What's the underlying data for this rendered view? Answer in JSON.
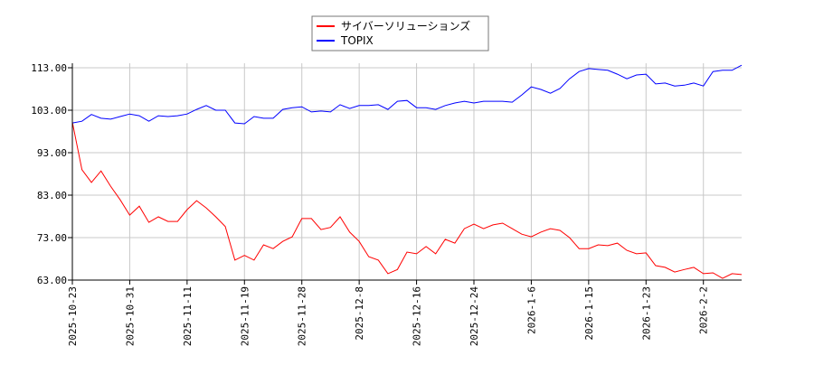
{
  "chart_data": {
    "type": "line",
    "title": "",
    "xlabel": "",
    "ylabel": "",
    "ylim": [
      63,
      113
    ],
    "xlim": [
      0,
      70
    ],
    "grid": true,
    "legend_position": "top-center",
    "y_ticks": [
      {
        "value": 63,
        "label": "63.00"
      },
      {
        "value": 73,
        "label": "73.00"
      },
      {
        "value": 83,
        "label": "83.00"
      },
      {
        "value": 93,
        "label": "93.00"
      },
      {
        "value": 103,
        "label": "103.00"
      },
      {
        "value": 113,
        "label": "113.00"
      }
    ],
    "x_ticks": [
      {
        "index": 0,
        "label": "2025-10-23"
      },
      {
        "index": 6,
        "label": "2025-10-31"
      },
      {
        "index": 12,
        "label": "2025-11-11"
      },
      {
        "index": 18,
        "label": "2025-11-19"
      },
      {
        "index": 24,
        "label": "2025-11-28"
      },
      {
        "index": 30,
        "label": "2025-12-8"
      },
      {
        "index": 36,
        "label": "2025-12-16"
      },
      {
        "index": 42,
        "label": "2025-12-24"
      },
      {
        "index": 48,
        "label": "2026-1-6"
      },
      {
        "index": 54,
        "label": "2026-1-15"
      },
      {
        "index": 60,
        "label": "2026-1-23"
      },
      {
        "index": 66,
        "label": "2026-2-2"
      }
    ],
    "series": [
      {
        "name": "サイバーソリューションズ",
        "color": "#ff0000",
        "values": [
          100.2,
          89,
          86,
          88.7,
          85.1,
          81.9,
          78.3,
          80.4,
          76.6,
          77.9,
          76.8,
          76.8,
          79.6,
          81.7,
          80,
          77.9,
          75.6,
          67.7,
          68.8,
          67.7,
          71.3,
          70.4,
          72.1,
          73.2,
          77.5,
          77.5,
          74.9,
          75.4,
          77.9,
          74.3,
          72.1,
          68.5,
          67.7,
          64.5,
          65.5,
          69.6,
          69.2,
          70.9,
          69.2,
          72.6,
          71.7,
          75.1,
          76.2,
          75.1,
          76,
          76.4,
          75.1,
          73.8,
          73.2,
          74.3,
          75.1,
          74.7,
          73,
          70.4,
          70.4,
          71.3,
          71.1,
          71.7,
          70,
          69.2,
          69.4,
          66.4,
          66,
          64.9,
          65.5,
          66,
          64.5,
          64.7,
          63.4,
          64.5,
          64.3
        ]
      },
      {
        "name": "TOPIX",
        "color": "#0000ff",
        "values": [
          100,
          100.4,
          102,
          101.1,
          100.9,
          101.5,
          102.1,
          101.7,
          100.4,
          101.7,
          101.5,
          101.7,
          102.1,
          103.2,
          104.1,
          103,
          103,
          100,
          99.8,
          101.5,
          101.1,
          101.1,
          103.2,
          103.6,
          103.8,
          102.6,
          102.8,
          102.6,
          104.3,
          103.4,
          104.1,
          104.1,
          104.3,
          103.2,
          105.1,
          105.3,
          103.6,
          103.6,
          103.2,
          104.1,
          104.7,
          105.1,
          104.7,
          105.1,
          105.1,
          105.1,
          104.9,
          106.6,
          108.5,
          107.9,
          107,
          108.1,
          110.4,
          112.1,
          112.8,
          112.6,
          112.4,
          111.5,
          110.4,
          111.3,
          111.5,
          109.2,
          109.4,
          108.7,
          108.9,
          109.4,
          108.7,
          112.1,
          112.4,
          112.4,
          113.6
        ]
      }
    ]
  }
}
